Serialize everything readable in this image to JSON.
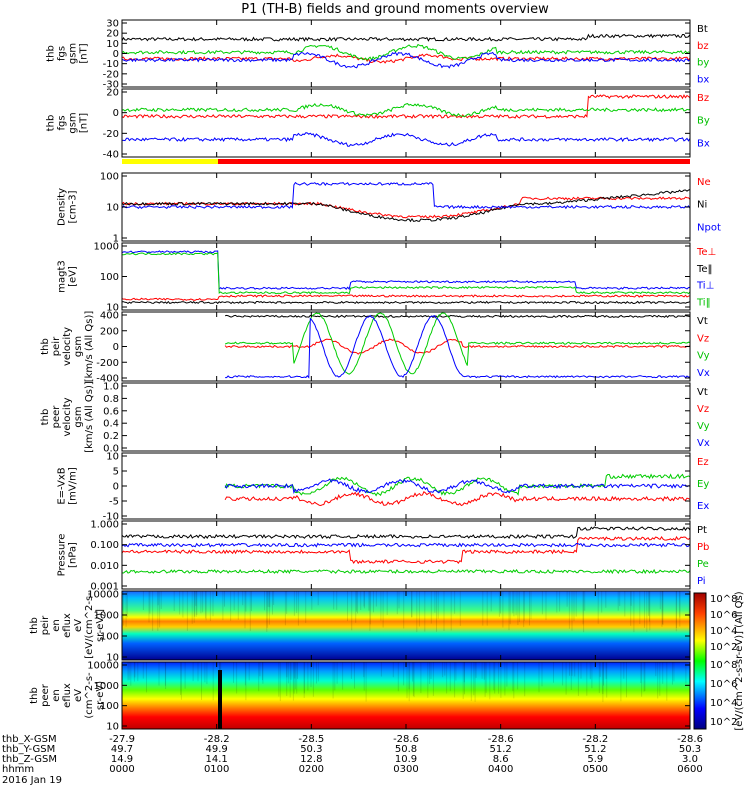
{
  "title": "P1 (TH-B) fields and ground moments overview",
  "footer": {
    "rows": [
      {
        "label": "thb_X-GSM",
        "values": [
          "-27.9",
          "-28.2",
          "-28.5",
          "-28.6",
          "-28.6",
          "-28.2",
          "-28.6"
        ]
      },
      {
        "label": "thb_Y-GSM",
        "values": [
          "49.7",
          "49.9",
          "50.3",
          "50.8",
          "51.2",
          "51.2",
          "50.3"
        ]
      },
      {
        "label": "thb_Z-GSM",
        "values": [
          "14.9",
          "14.1",
          "12.8",
          "10.9",
          "8.6",
          "5.9",
          "3.0"
        ]
      },
      {
        "label": "hhmm",
        "values": [
          "0000",
          "0100",
          "0200",
          "0300",
          "0400",
          "0500",
          "0600"
        ]
      }
    ],
    "date": "2016 Jan 19"
  },
  "colorbar": {
    "label": "[eV/(cm^2-s-sr-eV)] (All Qs)",
    "ticks_top": [
      "10^8",
      "10^6",
      "10^4",
      "10^2"
    ],
    "ticks_bottom": [
      "10^8",
      "10^6",
      "10^4",
      "10^2"
    ]
  },
  "chart_data": [
    {
      "type": "line",
      "ylabel": [
        "thb",
        "fgs",
        "gsm",
        "[nT]"
      ],
      "yticks": [
        "30",
        "20",
        "10",
        "0",
        "-10",
        "-20",
        "-30"
      ],
      "ylim": [
        -30,
        30
      ],
      "series": [
        {
          "name": "Bt",
          "color": "#000000"
        },
        {
          "name": "bz",
          "color": "#ff0000"
        },
        {
          "name": "by",
          "color": "#00cc00"
        },
        {
          "name": "bx",
          "color": "#0000ff"
        }
      ]
    },
    {
      "type": "line",
      "ylabel": [
        "thb",
        "fgs",
        "gsm",
        "[nT]"
      ],
      "yticks": [
        "20",
        "0",
        "-20",
        "-40"
      ],
      "ylim": [
        -50,
        30
      ],
      "series": [
        {
          "name": "Bz",
          "color": "#ff0000"
        },
        {
          "name": "By",
          "color": "#00cc00"
        },
        {
          "name": "Bx",
          "color": "#0000ff"
        }
      ]
    },
    {
      "type": "line",
      "ylabel": [
        "Density",
        "[cm-3]"
      ],
      "log": true,
      "yticks": [
        "100",
        "10",
        "1"
      ],
      "ylim": [
        1,
        200
      ],
      "series": [
        {
          "name": "Ne",
          "color": "#ff0000"
        },
        {
          "name": "Ni",
          "color": "#000000"
        },
        {
          "name": "Npot",
          "color": "#0000ff"
        }
      ]
    },
    {
      "type": "line",
      "ylabel": [
        "magt3",
        "[eV]"
      ],
      "log": true,
      "yticks": [
        "1000",
        "100",
        "10"
      ],
      "ylim": [
        10,
        3000
      ],
      "series": [
        {
          "name": "Te⊥",
          "color": "#ff0000"
        },
        {
          "name": "Te‖",
          "color": "#000000"
        },
        {
          "name": "Ti⊥",
          "color": "#0000ff"
        },
        {
          "name": "Ti‖",
          "color": "#00cc00"
        }
      ]
    },
    {
      "type": "line",
      "ylabel": [
        "thb",
        "peir",
        "velocity",
        "gsm",
        "[km/s (All Qs)]"
      ],
      "yticks": [
        "400",
        "200",
        "0",
        "-200",
        "-400"
      ],
      "ylim": [
        -400,
        400
      ],
      "series": [
        {
          "name": "Vt",
          "color": "#000000"
        },
        {
          "name": "Vz",
          "color": "#ff0000"
        },
        {
          "name": "Vy",
          "color": "#00cc00"
        },
        {
          "name": "Vx",
          "color": "#0000ff"
        }
      ]
    },
    {
      "type": "line",
      "ylabel": [
        "thb",
        "peer",
        "velocity",
        "gsm",
        "[km/s (All Qs)]"
      ],
      "yticks": [
        "1.0",
        "0.8",
        "0.6",
        "0.4",
        "0.2",
        "0.0"
      ],
      "ylim": [
        0,
        1
      ],
      "series": [
        {
          "name": "Vt",
          "color": "#000000"
        },
        {
          "name": "Vz",
          "color": "#ff0000"
        },
        {
          "name": "Vy",
          "color": "#00cc00"
        },
        {
          "name": "Vx",
          "color": "#0000ff"
        }
      ]
    },
    {
      "type": "line",
      "ylabel": [
        "E=-VxB",
        "[mV/m]"
      ],
      "yticks": [
        "10",
        "5",
        "0",
        "-5",
        "-10"
      ],
      "ylim": [
        -10,
        10
      ],
      "series": [
        {
          "name": "Ez",
          "color": "#ff0000"
        },
        {
          "name": "Ey",
          "color": "#00cc00"
        },
        {
          "name": "Ex",
          "color": "#0000ff"
        }
      ]
    },
    {
      "type": "line",
      "ylabel": [
        "Pressure",
        "[nPa]"
      ],
      "log": true,
      "yticks": [
        "1.000",
        "0.100",
        "0.010",
        "0.001"
      ],
      "ylim": [
        0.001,
        1.5
      ],
      "series": [
        {
          "name": "Pt",
          "color": "#000000"
        },
        {
          "name": "Pb",
          "color": "#ff0000"
        },
        {
          "name": "Pe",
          "color": "#00cc00"
        },
        {
          "name": "Pi",
          "color": "#0000ff"
        }
      ]
    },
    {
      "type": "heatmap",
      "ylabel": [
        "thb",
        "peir",
        "en",
        "eflux",
        "eV",
        "[eV/(cm^2-s-",
        "sr-eV)]"
      ],
      "yticks": [
        "10000",
        "1000",
        "100",
        "10"
      ]
    },
    {
      "type": "heatmap",
      "ylabel": [
        "thb",
        "peer",
        "en",
        "eflux",
        "eV",
        "(cm^2-s-",
        "sr-eV)"
      ],
      "yticks": [
        "10000",
        "1000",
        "100",
        "10"
      ]
    }
  ],
  "colors": {
    "yellow_bar": "#ffff00",
    "red_bar": "#ff0000"
  }
}
